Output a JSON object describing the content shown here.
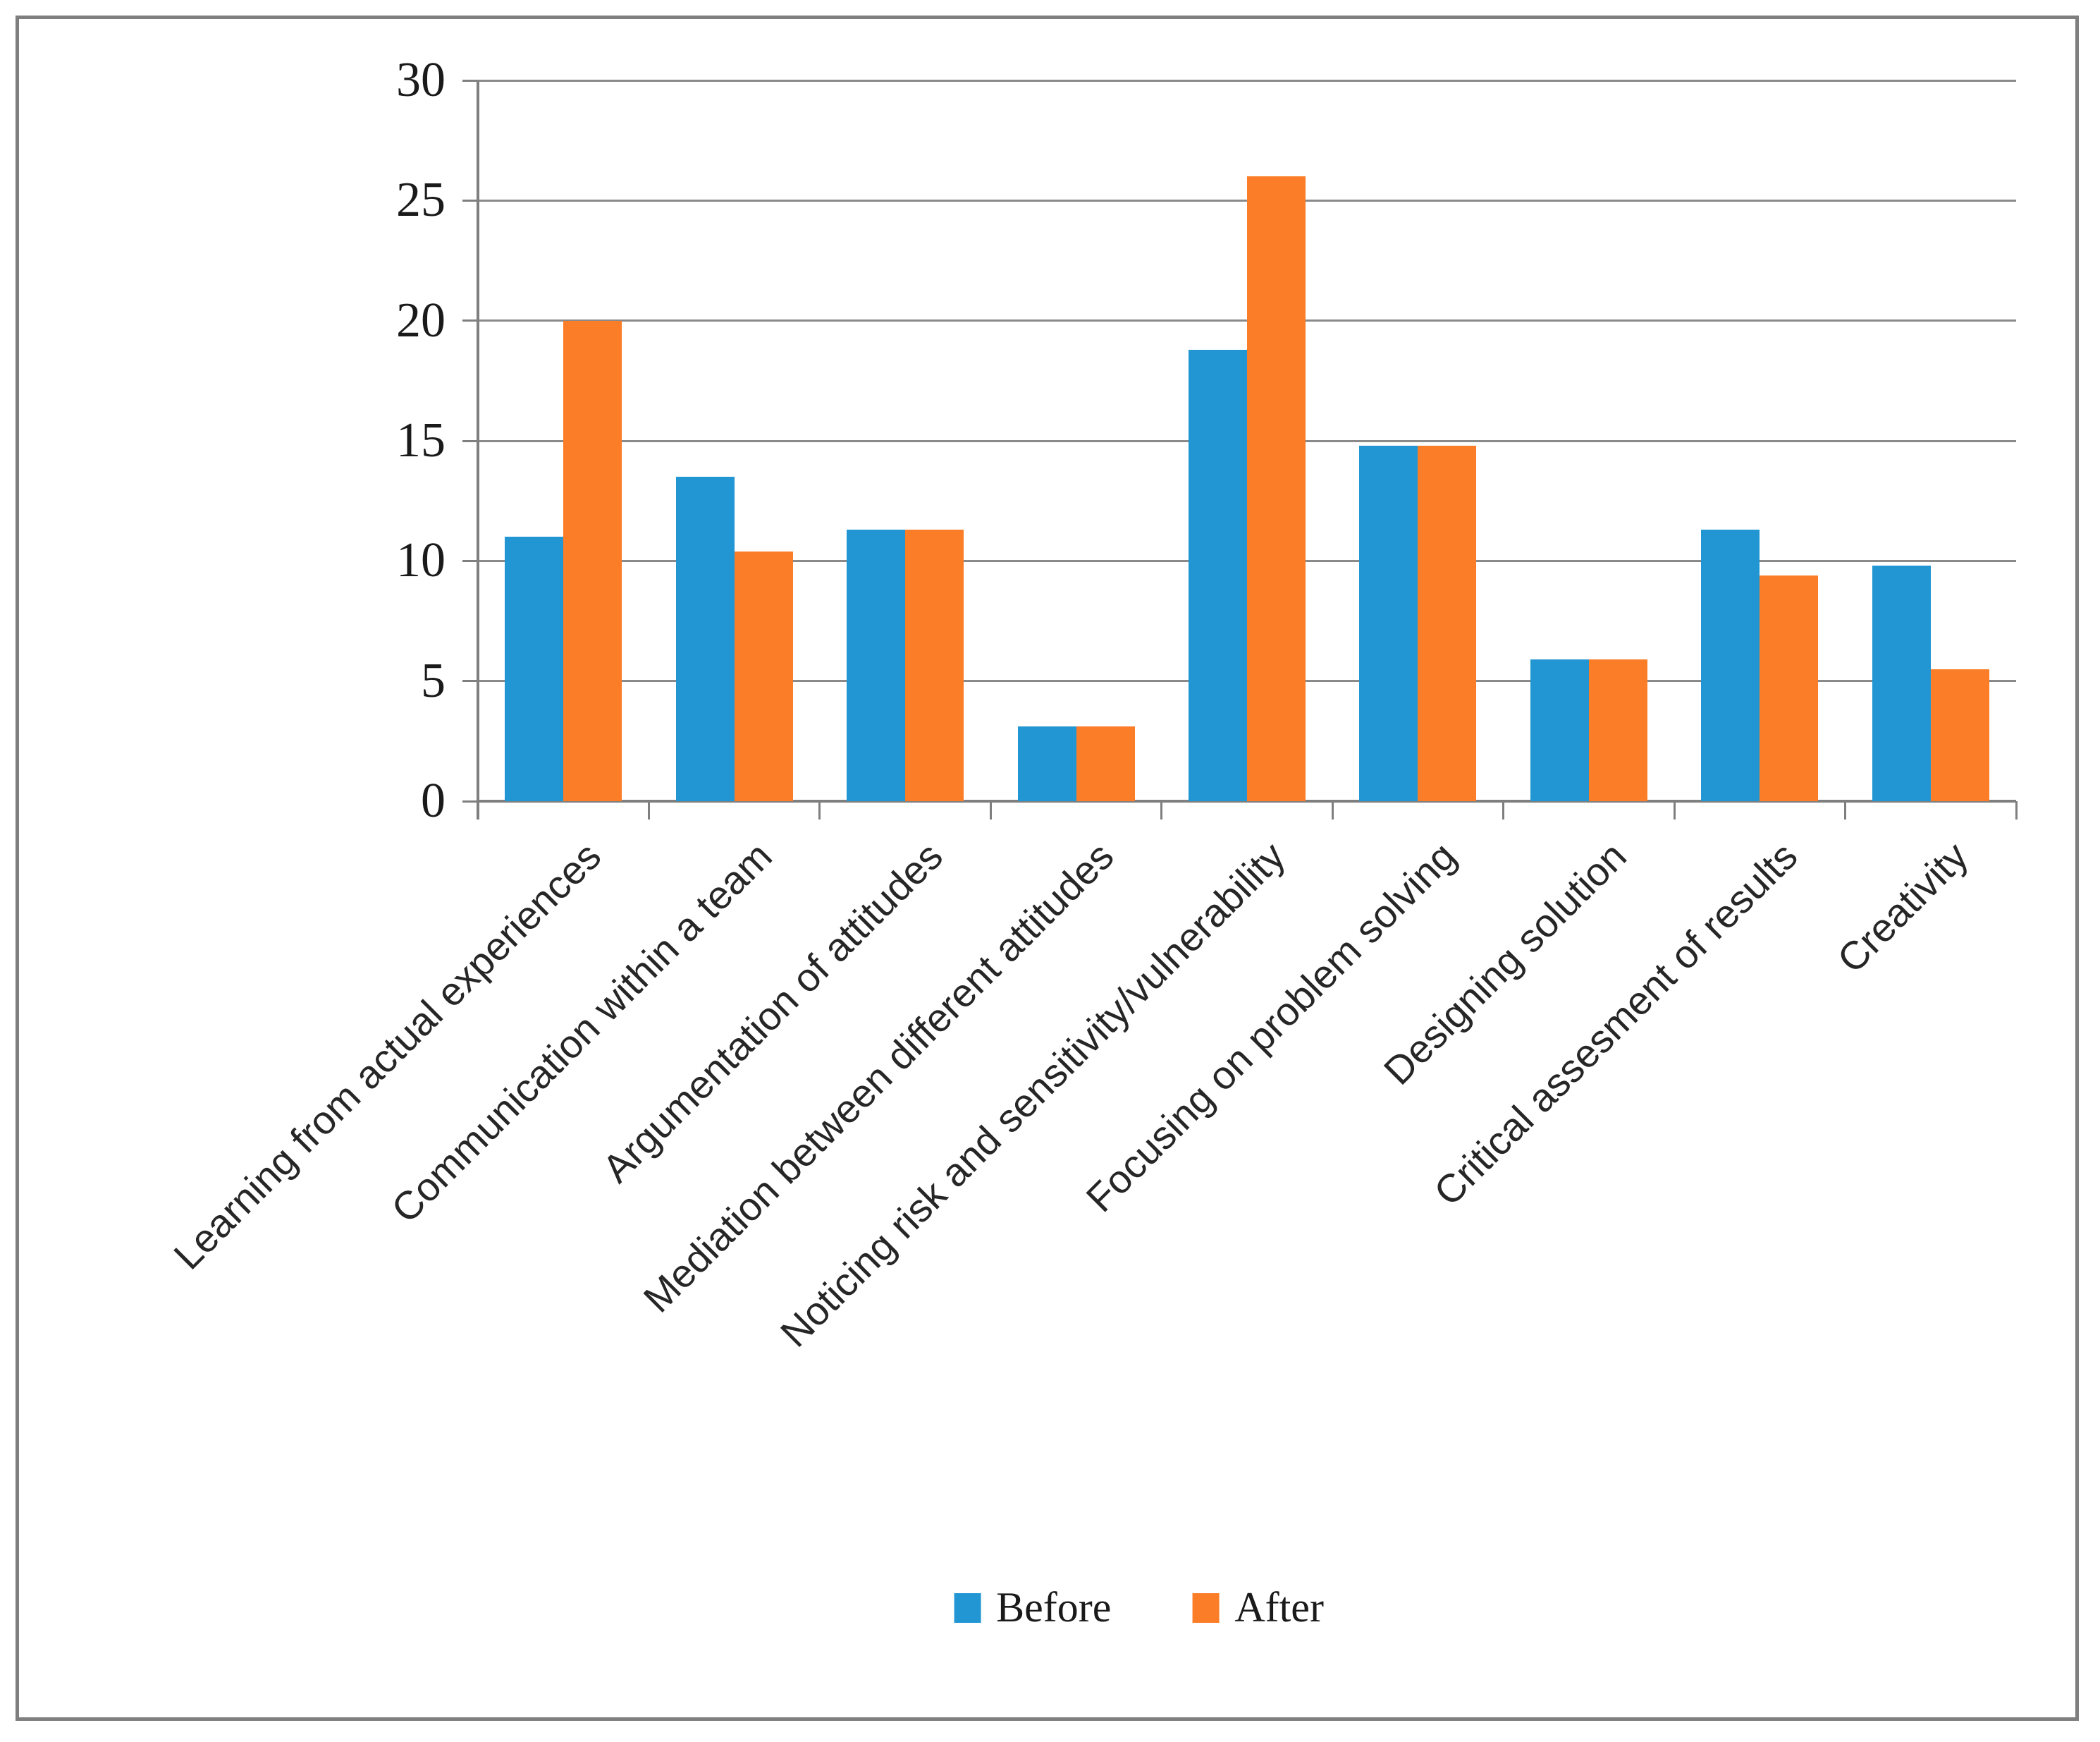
{
  "figure": {
    "background": "#ffffff",
    "border_color": "#7f7f7f"
  },
  "chart_data": {
    "type": "bar",
    "title": "",
    "xlabel": "",
    "ylabel": "",
    "categories": [
      "Learning from actual experiences",
      "Communication within a team",
      "Argumentation of attitudes",
      "Mediation between different attitudes",
      "Noticing risk and sensitivity/vulnerability",
      "Focusing on problem solving",
      "Designing solution",
      "Critical assesment of results",
      "Creativity"
    ],
    "series": [
      {
        "name": "Before",
        "color": "#2196d3",
        "values": [
          11.0,
          13.5,
          11.3,
          3.1,
          18.8,
          14.8,
          5.9,
          11.3,
          9.8
        ]
      },
      {
        "name": "After",
        "color": "#fb7d27",
        "values": [
          20.0,
          10.4,
          11.3,
          3.1,
          26.0,
          14.8,
          5.9,
          9.4,
          5.5
        ]
      }
    ],
    "ylim": [
      0,
      30
    ],
    "ytick_step": 5,
    "yticks": [
      "0",
      "5",
      "10",
      "15",
      "20",
      "25",
      "30"
    ],
    "grid": true,
    "gridline_color": "#8a8a8a",
    "legend_position": "bottom"
  }
}
